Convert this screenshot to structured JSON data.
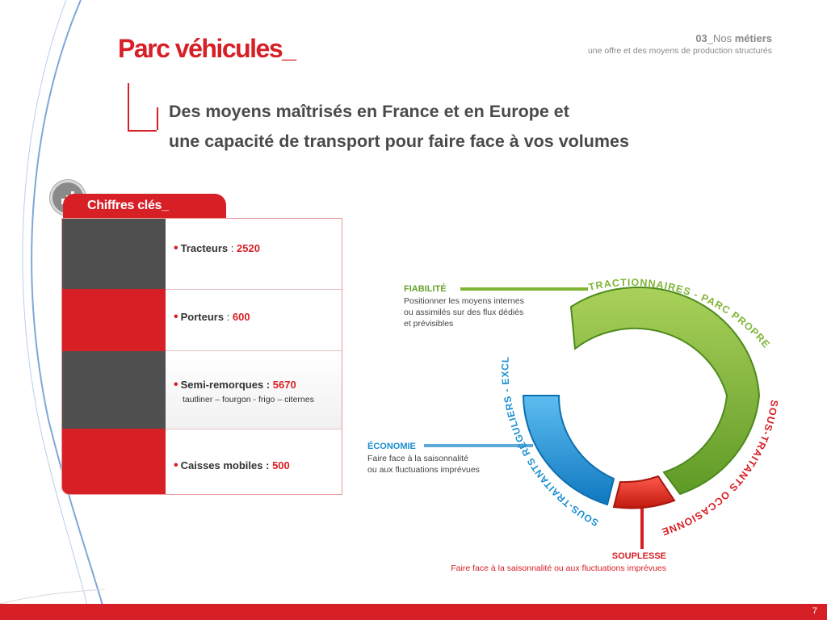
{
  "page": {
    "title": "Parc véhicules_",
    "section_number": "03",
    "section_prefix": "_Nos ",
    "section_name": "métiers",
    "section_caption": "une offre et des moyens de production structurés",
    "subtitle_line1": "Des moyens maîtrisés en France et en Europe et",
    "subtitle_line2": "une capacité de transport pour faire face à vos volumes",
    "page_number": "7"
  },
  "key_figures": {
    "tab_label": "Chiffres clés_",
    "icon": "bar-chart-icon",
    "items": [
      {
        "label": "Tracteurs",
        "separator": " : ",
        "value": "2520",
        "note": ""
      },
      {
        "label": "Porteurs",
        "separator": " : ",
        "value": "600",
        "note": ""
      },
      {
        "label": "Semi-remorques",
        "separator": " :  ",
        "value": "5670",
        "note": "tautliner – fourgon - frigo – citernes"
      },
      {
        "label": "Caisses mobiles",
        "separator": " :  ",
        "value": "500",
        "note": ""
      }
    ]
  },
  "donut": {
    "segments": [
      {
        "arc_label": "TRACTIONNAIRES - PARC PROPRE",
        "color": "#7fb534",
        "color_dark": "#4e8a1c"
      },
      {
        "arc_label": "SOUS-TRAITANTS OCCASIONNELS",
        "color": "#e32a1d",
        "color_dark": "#a8170f"
      },
      {
        "arc_label": "SOUS-TRAITANTS RÉGULIERS - EXCLUSIFS",
        "color": "#1e9ee0",
        "color_dark": "#0e6fb0"
      }
    ],
    "callouts": {
      "fiabilite": {
        "title": "FIABILITÉ",
        "text": [
          "Positionner les moyens internes",
          "ou assimilés sur des flux dédiés",
          "et prévisibles"
        ],
        "color": "#66a22c"
      },
      "economie": {
        "title": "ÉCONOMIE",
        "text": [
          "Faire face à la saisonnalité",
          "ou aux fluctuations imprévues"
        ],
        "color": "#1b8fd1"
      },
      "souplesse": {
        "title": "SOUPLESSE",
        "text": [
          "Faire face à la saisonnalité ou aux fluctuations imprévues"
        ],
        "color": "#d71f26"
      }
    }
  },
  "colors": {
    "brand_red": "#d71f26",
    "text_dark": "#4a4a4a",
    "line_blue": "#5aa9d6"
  }
}
